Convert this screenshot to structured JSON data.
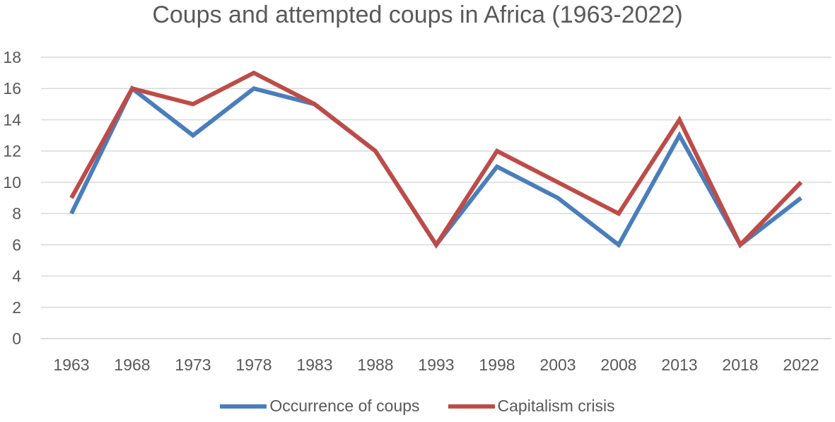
{
  "chart_data": {
    "type": "line",
    "title": "Coups and attempted coups in Africa (1963-2022)",
    "xlabel": "",
    "ylabel": "",
    "categories": [
      "1963",
      "1968",
      "1973",
      "1978",
      "1983",
      "1988",
      "1993",
      "1998",
      "2003",
      "2008",
      "2013",
      "2018",
      "2022"
    ],
    "ylim": [
      0,
      18
    ],
    "yticks": [
      "0",
      "2",
      "4",
      "6",
      "8",
      "10",
      "12",
      "14",
      "16",
      "18"
    ],
    "grid": "horizontal",
    "legend_position": "bottom",
    "series": [
      {
        "name": "Occurrence of coups",
        "color": "#4a7ebb",
        "values": [
          8,
          16,
          13,
          16,
          15,
          12,
          6,
          11,
          9,
          6,
          13,
          6,
          9
        ]
      },
      {
        "name": "Capitalism crisis",
        "color": "#be4b48",
        "values": [
          9,
          16,
          15,
          17,
          15,
          12,
          6,
          12,
          10,
          8,
          14,
          6,
          10
        ]
      }
    ]
  }
}
